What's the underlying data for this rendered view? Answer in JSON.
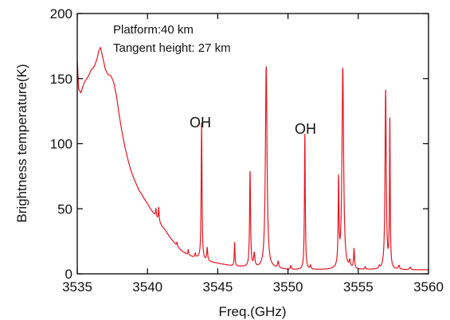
{
  "chart_data": {
    "type": "line",
    "xlabel": "Freq.(GHz)",
    "ylabel": "Brightness temperature(K)",
    "xlim": [
      3535,
      3560
    ],
    "ylim": [
      0,
      200
    ],
    "xticks": [
      3535,
      3540,
      3545,
      3550,
      3555,
      3560
    ],
    "yticks": [
      0,
      50,
      100,
      150,
      200
    ],
    "grid": false,
    "annotations": [
      "Platform:40 km",
      "Tangent height: 27 km"
    ],
    "peak_labels": [
      {
        "text": "OH",
        "x": 3543.9,
        "y": 118
      },
      {
        "text": "OH",
        "x": 3551.2,
        "y": 106
      }
    ],
    "line_color": "#e8141e",
    "series": [
      {
        "baseline": [
          [
            3535.0,
            164
          ],
          [
            3535.1,
            142
          ],
          [
            3535.25,
            139
          ],
          [
            3535.5,
            147
          ],
          [
            3535.8,
            152
          ],
          [
            3536.0,
            157
          ],
          [
            3536.2,
            159
          ],
          [
            3536.4,
            165
          ],
          [
            3536.55,
            172
          ],
          [
            3536.65,
            174
          ],
          [
            3536.8,
            167
          ],
          [
            3537.0,
            157
          ],
          [
            3537.2,
            153
          ],
          [
            3537.4,
            152
          ],
          [
            3537.6,
            147
          ],
          [
            3537.8,
            136
          ],
          [
            3538.0,
            121
          ],
          [
            3538.2,
            108
          ],
          [
            3538.4,
            97
          ],
          [
            3538.6,
            88
          ],
          [
            3538.8,
            80
          ],
          [
            3539.0,
            74
          ],
          [
            3539.2,
            69
          ],
          [
            3539.4,
            64
          ],
          [
            3539.6,
            61
          ],
          [
            3539.8,
            57
          ],
          [
            3540.0,
            54
          ],
          [
            3540.2,
            50
          ],
          [
            3540.4,
            47
          ],
          [
            3540.6,
            44
          ],
          [
            3540.8,
            41
          ],
          [
            3541.0,
            37
          ],
          [
            3541.3,
            33
          ],
          [
            3541.6,
            28
          ],
          [
            3541.9,
            24
          ],
          [
            3542.2,
            20
          ],
          [
            3542.5,
            17
          ],
          [
            3542.8,
            15
          ],
          [
            3543.2,
            13
          ],
          [
            3543.6,
            12
          ],
          [
            3544.0,
            10
          ],
          [
            3544.5,
            9
          ],
          [
            3545.0,
            8
          ],
          [
            3545.5,
            7
          ],
          [
            3546.0,
            6
          ],
          [
            3547.0,
            5
          ],
          [
            3548.0,
            4
          ],
          [
            3549.0,
            4
          ],
          [
            3550.0,
            3
          ],
          [
            3551.0,
            3
          ],
          [
            3552.0,
            3
          ],
          [
            3553.0,
            3
          ],
          [
            3554.0,
            3
          ],
          [
            3555.0,
            3
          ],
          [
            3556.0,
            3
          ],
          [
            3557.0,
            3
          ],
          [
            3558.0,
            3
          ],
          [
            3559.0,
            3
          ],
          [
            3560.0,
            3
          ]
        ],
        "peaks": [
          {
            "x": 3540.6,
            "amp": 6,
            "width": 0.03
          },
          {
            "x": 3540.8,
            "amp": 10,
            "width": 0.03
          },
          {
            "x": 3542.1,
            "amp": 3,
            "width": 0.03
          },
          {
            "x": 3542.9,
            "amp": 4,
            "width": 0.03
          },
          {
            "x": 3543.4,
            "amp": 3,
            "width": 0.03
          },
          {
            "x": 3543.85,
            "amp": 105,
            "width": 0.035
          },
          {
            "x": 3544.25,
            "amp": 10,
            "width": 0.04
          },
          {
            "x": 3546.2,
            "amp": 18,
            "width": 0.03
          },
          {
            "x": 3547.3,
            "amp": 73,
            "width": 0.04
          },
          {
            "x": 3547.6,
            "amp": 10,
            "width": 0.05
          },
          {
            "x": 3548.45,
            "amp": 155,
            "width": 0.07
          },
          {
            "x": 3549.3,
            "amp": 5,
            "width": 0.05
          },
          {
            "x": 3550.2,
            "amp": 3,
            "width": 0.04
          },
          {
            "x": 3551.2,
            "amp": 104,
            "width": 0.035
          },
          {
            "x": 3551.6,
            "amp": 3,
            "width": 0.04
          },
          {
            "x": 3553.6,
            "amp": 65,
            "width": 0.035
          },
          {
            "x": 3553.9,
            "amp": 154,
            "width": 0.07
          },
          {
            "x": 3554.4,
            "amp": 5,
            "width": 0.05
          },
          {
            "x": 3554.7,
            "amp": 15,
            "width": 0.04
          },
          {
            "x": 3555.5,
            "amp": 2,
            "width": 0.04
          },
          {
            "x": 3556.5,
            "amp": 2,
            "width": 0.04
          },
          {
            "x": 3556.95,
            "amp": 137,
            "width": 0.05
          },
          {
            "x": 3557.25,
            "amp": 113,
            "width": 0.03
          },
          {
            "x": 3557.9,
            "amp": 3,
            "width": 0.05
          },
          {
            "x": 3558.7,
            "amp": 2,
            "width": 0.05
          }
        ]
      }
    ]
  }
}
